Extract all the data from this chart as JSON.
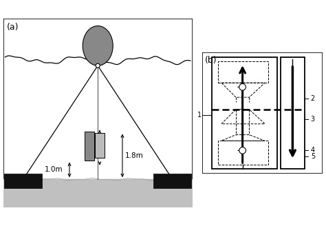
{
  "panel_a_label": "(a)",
  "panel_b_label": "(b)",
  "label_1_8m": "1.8m",
  "label_1_0m": "1.0m",
  "numbers": [
    "1",
    "2",
    "3",
    "4",
    "5"
  ],
  "sediment_color": "#c0c0c0",
  "buoy_color": "#888888",
  "anchor_color": "#111111",
  "trap_dark": "#888888",
  "trap_light": "#bbbbbb"
}
